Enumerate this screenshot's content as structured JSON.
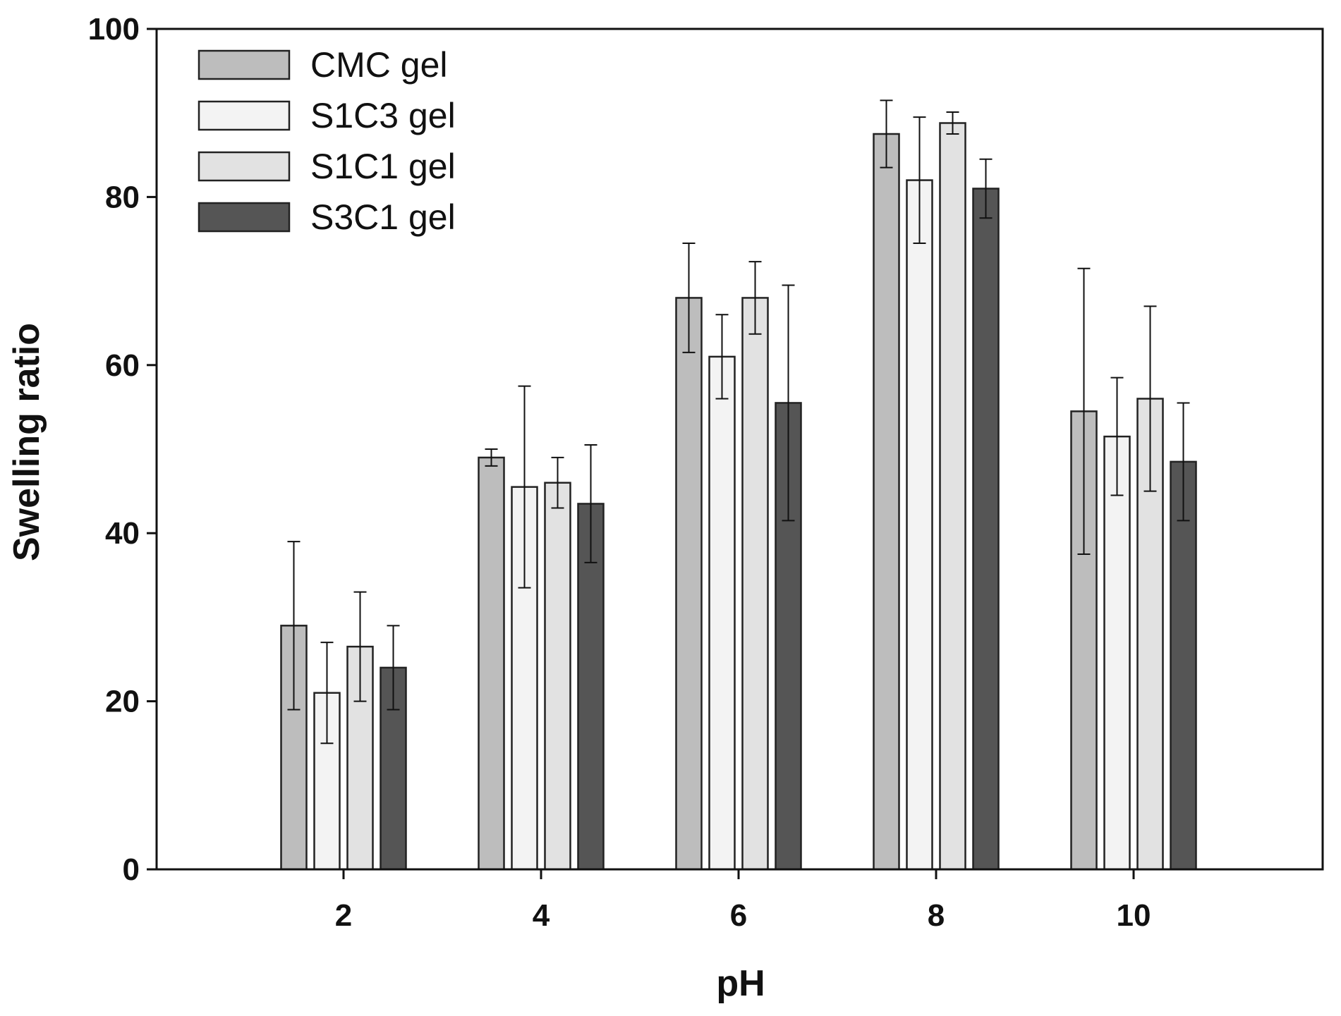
{
  "chart_data": {
    "type": "bar",
    "title": "",
    "xlabel": "pH",
    "ylabel": "Swelling ratio",
    "ylim": [
      0,
      100
    ],
    "yticks": [
      0,
      20,
      40,
      60,
      80,
      100
    ],
    "categories": [
      "2",
      "4",
      "6",
      "8",
      "10"
    ],
    "legend_position": "top-left",
    "error_bars": true,
    "series": [
      {
        "name": "CMC gel",
        "color": "#bdbdbd",
        "values": [
          29,
          49,
          68,
          87.5,
          54.5
        ],
        "errors": [
          10,
          1,
          6.5,
          4,
          17
        ]
      },
      {
        "name": "S1C3 gel",
        "color": "#f3f3f3",
        "values": [
          21,
          45.5,
          61,
          82,
          51.5
        ],
        "errors": [
          6,
          12,
          5,
          7.5,
          7
        ]
      },
      {
        "name": "S1C1 gel",
        "color": "#e2e2e2",
        "values": [
          26.5,
          46,
          68,
          88.8,
          56
        ],
        "errors": [
          6.5,
          3,
          4.3,
          1.3,
          11
        ]
      },
      {
        "name": "S3C1 gel",
        "color": "#555555",
        "values": [
          24,
          43.5,
          55.5,
          81,
          48.5
        ],
        "errors": [
          5,
          7,
          14,
          3.5,
          7
        ]
      }
    ]
  }
}
